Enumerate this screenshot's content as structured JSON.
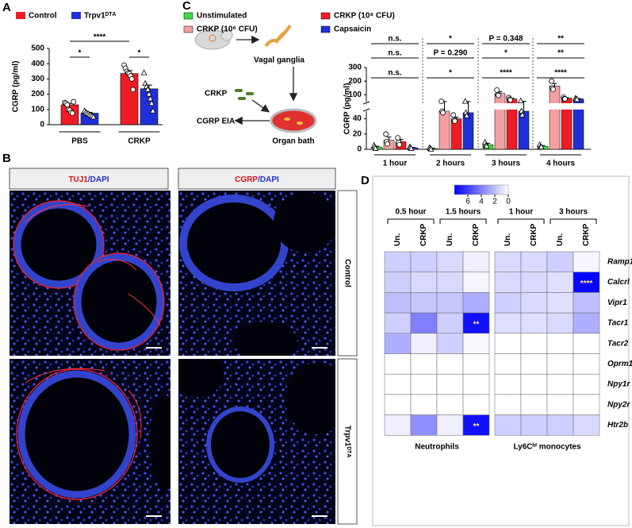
{
  "panel_labels": [
    "A",
    "B",
    "C",
    "D"
  ],
  "chart_data": [
    {
      "type": "bar",
      "y_label": "CGRP (pg/ml)",
      "categories": [
        "PBS",
        "CRKP"
      ],
      "ylim": [
        0,
        500
      ],
      "yticks": [
        0,
        100,
        200,
        300,
        400,
        500
      ],
      "series": [
        {
          "name": "Control",
          "color": "#ee1c25",
          "marker": "circle",
          "values": [
            130,
            335
          ],
          "errors": [
            10,
            20
          ],
          "points": [
            [
              145,
              140,
              130,
              100,
              95,
              80,
              75,
              150
            ],
            [
              390,
              370,
              350,
              340,
              335,
              320,
              300,
              230
            ]
          ]
        },
        {
          "name": "Trpv1ᴰᵀᴬ",
          "color": "#1f2fd8",
          "marker": "triangle",
          "values": [
            75,
            235
          ],
          "errors": [
            5,
            25
          ],
          "points": [
            [
              90,
              80,
              75,
              70,
              65,
              60,
              55,
              50
            ],
            [
              340,
              270,
              250,
              230,
              200,
              170,
              140,
              90
            ]
          ]
        }
      ],
      "significance": [
        "*",
        "****",
        "*"
      ]
    },
    {
      "type": "bar",
      "y_label": "CGRP (pg/ml)",
      "categories": [
        "1 hour",
        "2 hours",
        "3 hours",
        "4 hours"
      ],
      "y_segments": [
        {
          "ylim": [
            0,
            50
          ],
          "yticks": [
            0,
            20,
            40
          ]
        },
        {
          "ylim": [
            50,
            300
          ],
          "yticks": [
            100,
            200,
            300
          ]
        }
      ],
      "series": [
        {
          "name": "Unstimulated",
          "color": "#3ddc3d",
          "marker": "triangle",
          "values": [
            3,
            1,
            6,
            4
          ],
          "errors": [
            1,
            0.5,
            2,
            1
          ],
          "points": [
            [
              5,
              3,
              1
            ],
            [
              2,
              1,
              0
            ],
            [
              9,
              5,
              4
            ],
            [
              6,
              3,
              3
            ]
          ]
        },
        {
          "name": "CRKP (10⁶ CFU)",
          "color": "#f4a0a0",
          "marker": "circle",
          "values": [
            12,
            50,
            110,
            165
          ],
          "errors": [
            4,
            1,
            12,
            18
          ],
          "points": [
            [
              20,
              10,
              7
            ],
            [
              52,
              50,
              48
            ],
            [
              135,
              100,
              95
            ],
            [
              200,
              150,
              140
            ]
          ]
        },
        {
          "name": "CRKP (10⁸ CFU)",
          "color": "#ee1c25",
          "marker": "circle",
          "values": [
            10,
            40,
            70,
            75
          ],
          "errors": [
            3,
            2,
            5,
            4
          ],
          "points": [
            [
              15,
              9,
              6
            ],
            [
              45,
              38,
              37
            ],
            [
              80,
              68,
              62
            ],
            [
              82,
              72,
              70
            ]
          ]
        },
        {
          "name": "Capsaicin",
          "color": "#1f2fd8",
          "marker": "triangle",
          "values": [
            2,
            48,
            50,
            70
          ],
          "errors": [
            0.5,
            3,
            3,
            3
          ],
          "points": [
            [
              3,
              2,
              1
            ],
            [
              52,
              48,
              44
            ],
            [
              55,
              50,
              45
            ],
            [
              74,
              70,
              66
            ]
          ]
        }
      ],
      "significance": [
        [
          "n.s.",
          "*",
          "P = 0.348",
          "**"
        ],
        [
          "n.s.",
          "P = 0.290",
          "*",
          "**"
        ],
        [
          "n.s.",
          "*",
          "****",
          "****"
        ]
      ]
    },
    {
      "type": "heatmap",
      "zlim": [
        0,
        8
      ],
      "zticks": [
        6,
        4,
        2,
        0
      ],
      "rows": [
        "Ramp1",
        "Calcrl",
        "Vipr1",
        "Tacr1",
        "Tacr2",
        "Oprm1",
        "Npy1r",
        "Npy2r",
        "Htr2b"
      ],
      "columns": [
        "Un.",
        "CRKP"
      ],
      "panels": [
        {
          "name": "Neutrophils",
          "groups": [
            "0.5 hour",
            "1.5 hours"
          ],
          "values": [
            [
              1.5,
              1.5,
              1.2,
              0.5
            ],
            [
              1.5,
              1.2,
              1.2,
              0.3
            ],
            [
              2,
              1.8,
              1.8,
              2.5
            ],
            [
              1.5,
              4,
              1.5,
              7.5
            ],
            [
              2.5,
              0.5,
              1.5,
              0.2
            ],
            [
              0,
              0,
              0,
              0
            ],
            [
              0,
              0,
              0,
              0
            ],
            [
              0,
              0,
              0,
              0
            ],
            [
              0.5,
              3.5,
              0.5,
              7.5
            ]
          ],
          "significance": [
            [
              null,
              null,
              null,
              null
            ],
            [
              null,
              null,
              null,
              null
            ],
            [
              null,
              null,
              null,
              null
            ],
            [
              null,
              null,
              null,
              "**"
            ],
            [
              null,
              null,
              null,
              null
            ],
            [
              null,
              null,
              null,
              null
            ],
            [
              null,
              null,
              null,
              null
            ],
            [
              null,
              null,
              null,
              null
            ],
            [
              null,
              null,
              null,
              "**"
            ]
          ]
        },
        {
          "name": "Ly6Cʰⁱ monocytes",
          "groups": [
            "1 hour",
            "3 hours"
          ],
          "values": [
            [
              1.2,
              1.2,
              1.5,
              0.3
            ],
            [
              1.2,
              1.2,
              1,
              7.8
            ],
            [
              1.5,
              1.2,
              1,
              2
            ],
            [
              1,
              1,
              1.2,
              2.5
            ],
            [
              0,
              0,
              0,
              0
            ],
            [
              0,
              0,
              0,
              0
            ],
            [
              0,
              0,
              0,
              0
            ],
            [
              0,
              0,
              0,
              0
            ],
            [
              1.5,
              1.5,
              1.5,
              1.2
            ]
          ],
          "significance": [
            [
              null,
              null,
              null,
              null
            ],
            [
              null,
              null,
              null,
              "****"
            ],
            [
              null,
              null,
              null,
              null
            ],
            [
              null,
              null,
              null,
              null
            ],
            [
              null,
              null,
              null,
              null
            ],
            [
              null,
              null,
              null,
              null
            ],
            [
              null,
              null,
              null,
              null
            ],
            [
              null,
              null,
              null,
              null
            ],
            [
              null,
              null,
              null,
              null
            ]
          ]
        }
      ]
    }
  ],
  "panel_b": {
    "columns": [
      [
        "TUJ1",
        "/DAPI"
      ],
      [
        "CGRP",
        "/DAPI"
      ]
    ],
    "rows": [
      "Control",
      "Trpv1ᴰᵀᴬ"
    ]
  },
  "panel_c_diagram": {
    "labels": [
      "Vagal ganglia",
      "CRKP",
      "CGRP EIA",
      "Organ bath"
    ]
  }
}
